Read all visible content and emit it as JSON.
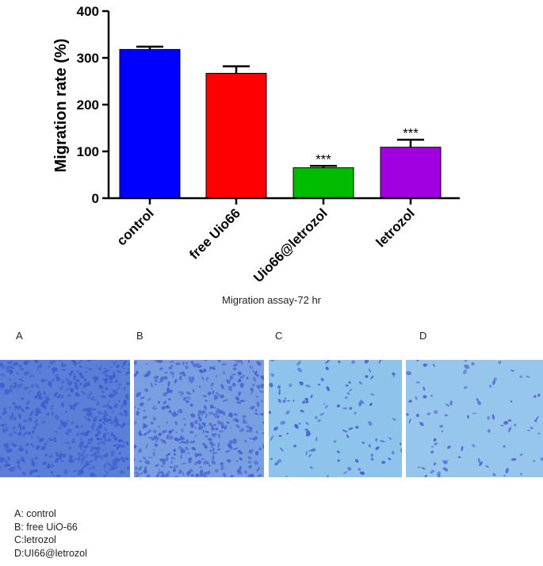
{
  "chart_data": {
    "type": "bar",
    "categories": [
      "control",
      "free Uio66",
      "Uio66@letrozol",
      "letrozol"
    ],
    "values": [
      318,
      267,
      65,
      109
    ],
    "errors": [
      6,
      15,
      4,
      16
    ],
    "colors": [
      "#0000ff",
      "#ff0000",
      "#00bb00",
      "#a000e0"
    ],
    "significance": [
      "",
      "",
      "***",
      "***"
    ],
    "ylabel": "Migration rate (%)",
    "xlabel": "",
    "ylim": [
      0,
      400
    ],
    "yticks": [
      0,
      100,
      200,
      300,
      400
    ],
    "grid": false,
    "legend": "none"
  },
  "caption": "Migration assay-72 hr",
  "panels": [
    {
      "letter": "A",
      "bg": "#5b7fd6",
      "cell": "#3d5ed0"
    },
    {
      "letter": "B",
      "bg": "#7a9fe0",
      "cell": "#4a63d2"
    },
    {
      "letter": "C",
      "bg": "#8ec4ec",
      "cell": "#4e62d0"
    },
    {
      "letter": "D",
      "bg": "#96c6ec",
      "cell": "#5464d2"
    }
  ],
  "legend_lines": [
    "A: control",
    "B: free UiO-66",
    "C:letrozol",
    "D:UI66@letrozol"
  ]
}
